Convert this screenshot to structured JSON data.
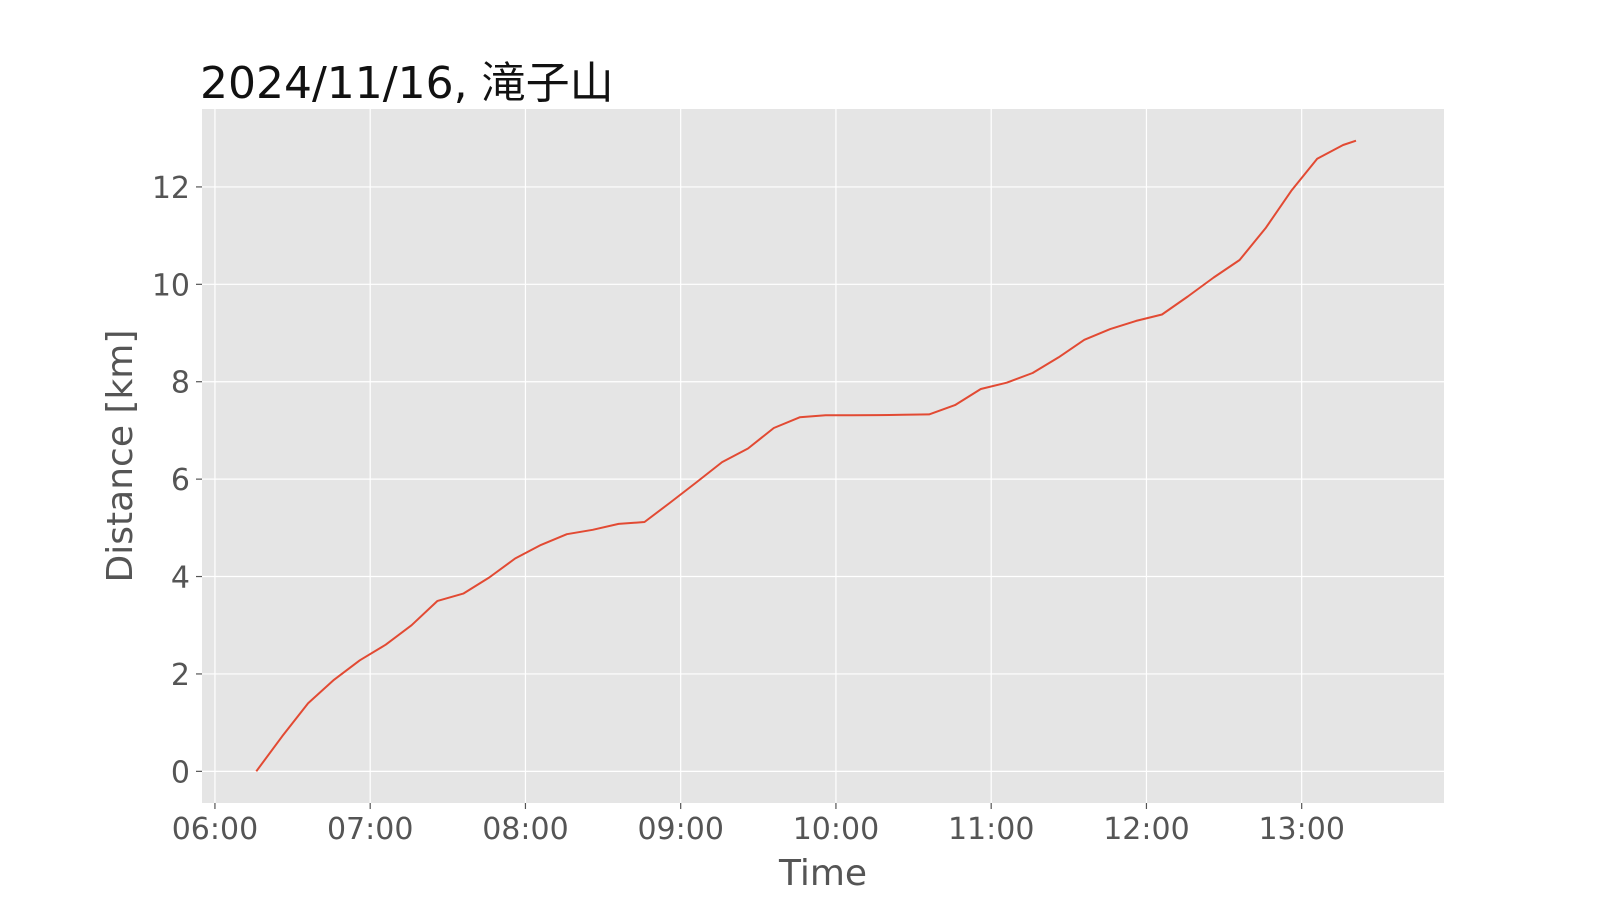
{
  "chart_data": {
    "type": "line",
    "title": "2024/11/16, 滝子山",
    "xlabel": "Time",
    "ylabel": "Distance [km]",
    "x_tick_labels": [
      "06:00",
      "07:00",
      "08:00",
      "09:00",
      "10:00",
      "11:00",
      "12:00",
      "13:00"
    ],
    "x_tick_values": [
      "06:00",
      "07:00",
      "08:00",
      "09:00",
      "10:00",
      "11:00",
      "12:00",
      "13:00"
    ],
    "y_ticks": [
      0,
      2,
      4,
      6,
      8,
      10,
      12
    ],
    "xlim": [
      "05:55",
      "13:55"
    ],
    "ylim": [
      -0.65,
      13.6
    ],
    "grid": true,
    "background": "#e5e5e5",
    "line_color": "#e24a33",
    "series": [
      {
        "x": [
          "06:16",
          "06:26",
          "06:36",
          "06:46",
          "06:56",
          "07:06",
          "07:16",
          "07:26",
          "07:36",
          "07:46",
          "07:56",
          "08:06",
          "08:16",
          "08:26",
          "08:36",
          "08:46",
          "08:56",
          "09:06",
          "09:16",
          "09:26",
          "09:36",
          "09:46",
          "09:56",
          "10:06",
          "10:16",
          "10:26",
          "10:36",
          "10:46",
          "10:56",
          "11:06",
          "11:16",
          "11:26",
          "11:36",
          "11:46",
          "11:56",
          "12:06",
          "12:16",
          "12:26",
          "12:36",
          "12:46",
          "12:56",
          "13:06",
          "13:16",
          "13:21"
        ],
        "y": [
          0,
          0.72,
          1.4,
          1.88,
          2.28,
          2.6,
          3.0,
          3.5,
          3.65,
          3.98,
          4.37,
          4.65,
          4.87,
          4.96,
          5.08,
          5.12,
          5.52,
          5.93,
          6.35,
          6.63,
          7.05,
          7.27,
          7.31,
          7.31,
          7.315,
          7.32,
          7.33,
          7.52,
          7.85,
          7.98,
          8.18,
          8.5,
          8.86,
          9.08,
          9.25,
          9.38,
          9.75,
          10.14,
          10.5,
          11.15,
          11.92,
          12.58,
          12.86,
          12.95
        ]
      }
    ]
  }
}
